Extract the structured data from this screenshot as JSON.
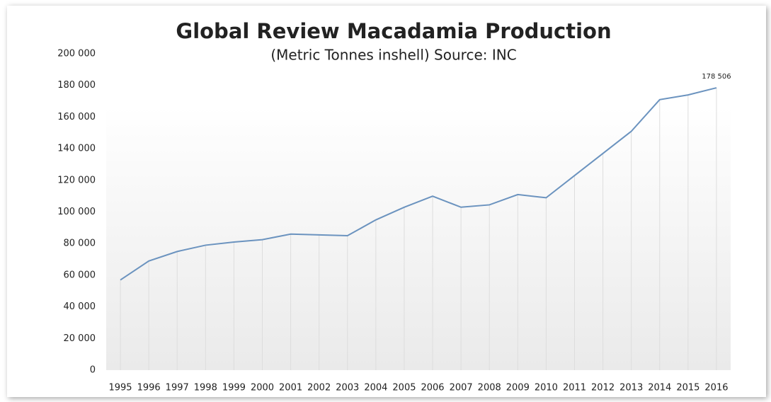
{
  "chart_data": {
    "type": "line",
    "title": "Global Review Macadamia Production",
    "subtitle": "(Metric Tonnes inshell) Source: INC",
    "categories": [
      "1995",
      "1996",
      "1997",
      "1998",
      "1999",
      "2000",
      "2001",
      "2002",
      "2003",
      "2004",
      "2005",
      "2006",
      "2007",
      "2008",
      "2009",
      "2010",
      "2011",
      "2012",
      "2013",
      "2014",
      "2015",
      "2016"
    ],
    "values": [
      57000,
      69000,
      75000,
      79000,
      81000,
      82500,
      86000,
      85500,
      85000,
      95000,
      103000,
      110000,
      103000,
      104500,
      111000,
      109000,
      123000,
      137000,
      151000,
      171000,
      174000,
      178506
    ],
    "value_labels": [
      null,
      null,
      null,
      null,
      null,
      null,
      null,
      null,
      null,
      null,
      null,
      null,
      null,
      null,
      null,
      null,
      null,
      null,
      null,
      null,
      null,
      "178 506"
    ],
    "color": "#6b93bf",
    "ylim": [
      0,
      200000
    ],
    "yticks": [
      {
        "value": 0,
        "label": "0"
      },
      {
        "value": 20000,
        "label": "20 000"
      },
      {
        "value": 40000,
        "label": "40 000"
      },
      {
        "value": 60000,
        "label": "60 000"
      },
      {
        "value": 80000,
        "label": "80 000"
      },
      {
        "value": 100000,
        "label": "100 000"
      },
      {
        "value": 120000,
        "label": "120 000"
      },
      {
        "value": 140000,
        "label": "140 000"
      },
      {
        "value": 160000,
        "label": "160 000"
      },
      {
        "value": 180000,
        "label": "180 000"
      },
      {
        "value": 200000,
        "label": "200 000"
      }
    ]
  }
}
